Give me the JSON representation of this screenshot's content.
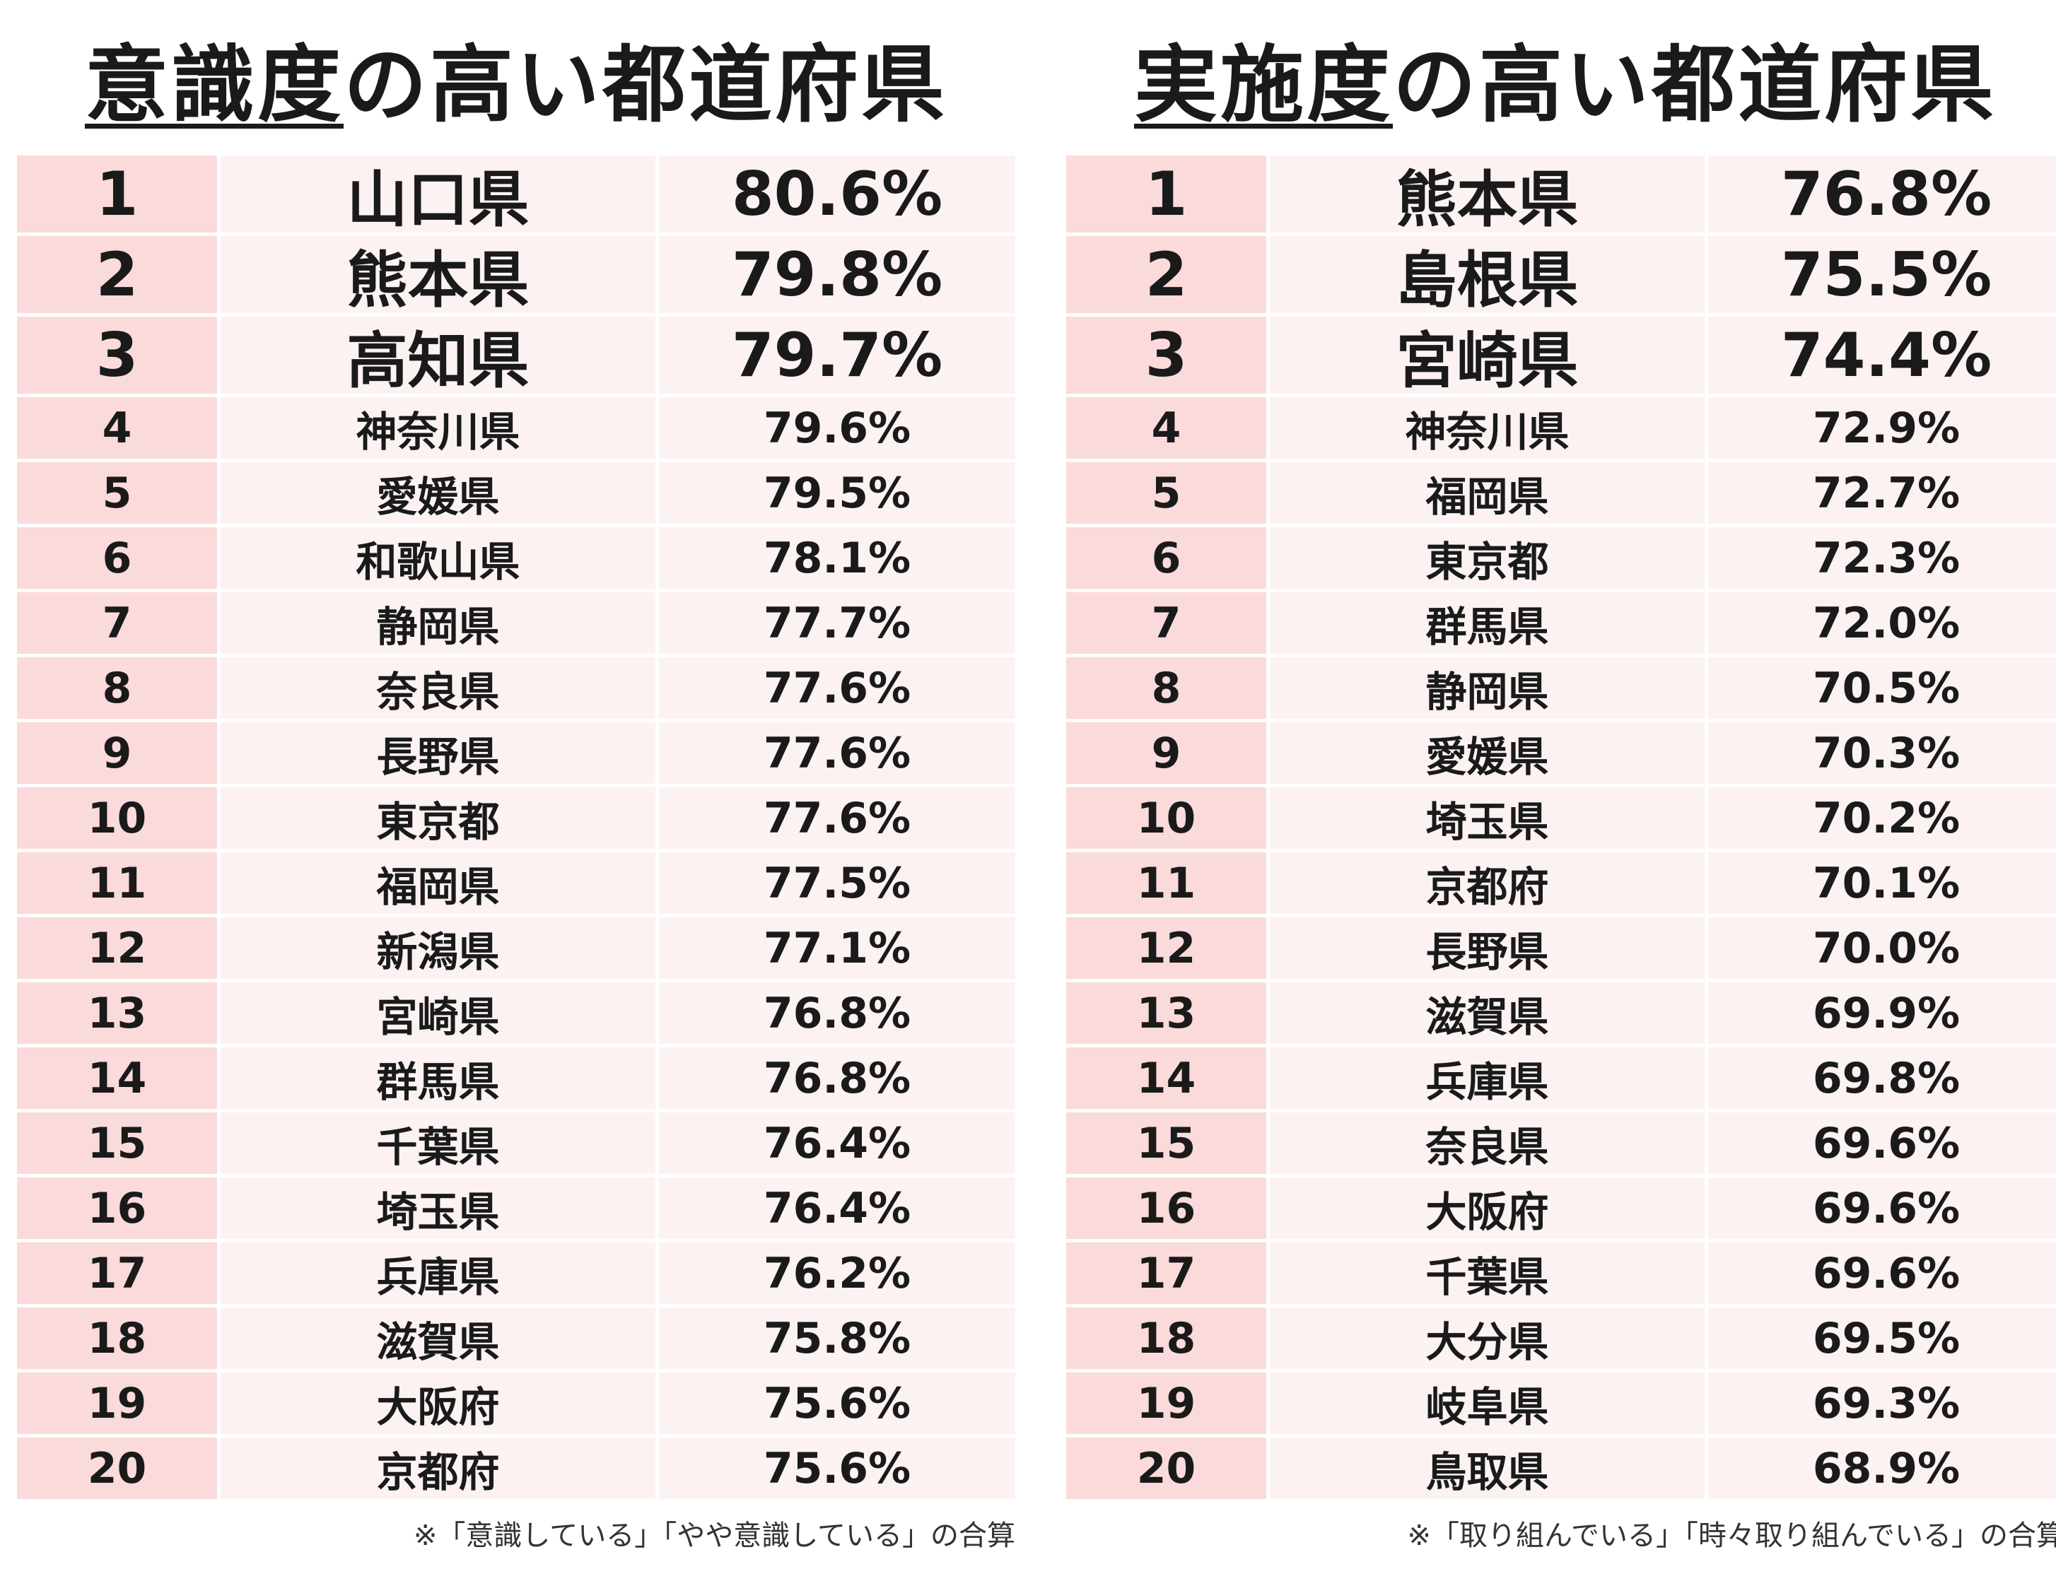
{
  "left": {
    "title_underlined": "意識度",
    "title_rest": "の高い都道府県",
    "rows": [
      {
        "rank": "1",
        "pref": "山口県",
        "pct": "80.6%"
      },
      {
        "rank": "2",
        "pref": "熊本県",
        "pct": "79.8%"
      },
      {
        "rank": "3",
        "pref": "高知県",
        "pct": "79.7%"
      },
      {
        "rank": "4",
        "pref": "神奈川県",
        "pct": "79.6%"
      },
      {
        "rank": "5",
        "pref": "愛媛県",
        "pct": "79.5%"
      },
      {
        "rank": "6",
        "pref": "和歌山県",
        "pct": "78.1%"
      },
      {
        "rank": "7",
        "pref": "静岡県",
        "pct": "77.7%"
      },
      {
        "rank": "8",
        "pref": "奈良県",
        "pct": "77.6%"
      },
      {
        "rank": "9",
        "pref": "長野県",
        "pct": "77.6%"
      },
      {
        "rank": "10",
        "pref": "東京都",
        "pct": "77.6%"
      },
      {
        "rank": "11",
        "pref": "福岡県",
        "pct": "77.5%"
      },
      {
        "rank": "12",
        "pref": "新潟県",
        "pct": "77.1%"
      },
      {
        "rank": "13",
        "pref": "宮崎県",
        "pct": "76.8%"
      },
      {
        "rank": "14",
        "pref": "群馬県",
        "pct": "76.8%"
      },
      {
        "rank": "15",
        "pref": "千葉県",
        "pct": "76.4%"
      },
      {
        "rank": "16",
        "pref": "埼玉県",
        "pct": "76.4%"
      },
      {
        "rank": "17",
        "pref": "兵庫県",
        "pct": "76.2%"
      },
      {
        "rank": "18",
        "pref": "滋賀県",
        "pct": "75.8%"
      },
      {
        "rank": "19",
        "pref": "大阪府",
        "pct": "75.6%"
      },
      {
        "rank": "20",
        "pref": "京都府",
        "pct": "75.6%"
      }
    ],
    "note": "※「意識している」「やや意識している」の合算"
  },
  "right": {
    "title_underlined": "実施度",
    "title_rest": "の高い都道府県",
    "rows": [
      {
        "rank": "1",
        "pref": "熊本県",
        "pct": "76.8%"
      },
      {
        "rank": "2",
        "pref": "島根県",
        "pct": "75.5%"
      },
      {
        "rank": "3",
        "pref": "宮崎県",
        "pct": "74.4%"
      },
      {
        "rank": "4",
        "pref": "神奈川県",
        "pct": "72.9%"
      },
      {
        "rank": "5",
        "pref": "福岡県",
        "pct": "72.7%"
      },
      {
        "rank": "6",
        "pref": "東京都",
        "pct": "72.3%"
      },
      {
        "rank": "7",
        "pref": "群馬県",
        "pct": "72.0%"
      },
      {
        "rank": "8",
        "pref": "静岡県",
        "pct": "70.5%"
      },
      {
        "rank": "9",
        "pref": "愛媛県",
        "pct": "70.3%"
      },
      {
        "rank": "10",
        "pref": "埼玉県",
        "pct": "70.2%"
      },
      {
        "rank": "11",
        "pref": "京都府",
        "pct": "70.1%"
      },
      {
        "rank": "12",
        "pref": "長野県",
        "pct": "70.0%"
      },
      {
        "rank": "13",
        "pref": "滋賀県",
        "pct": "69.9%"
      },
      {
        "rank": "14",
        "pref": "兵庫県",
        "pct": "69.8%"
      },
      {
        "rank": "15",
        "pref": "奈良県",
        "pct": "69.6%"
      },
      {
        "rank": "16",
        "pref": "大阪府",
        "pct": "69.6%"
      },
      {
        "rank": "17",
        "pref": "千葉県",
        "pct": "69.6%"
      },
      {
        "rank": "18",
        "pref": "大分県",
        "pct": "69.5%"
      },
      {
        "rank": "19",
        "pref": "岐阜県",
        "pct": "69.3%"
      },
      {
        "rank": "20",
        "pref": "鳥取県",
        "pct": "68.9%"
      }
    ],
    "note": "※「取り組んでいる」「時々取り組んでいる」の合算"
  }
}
